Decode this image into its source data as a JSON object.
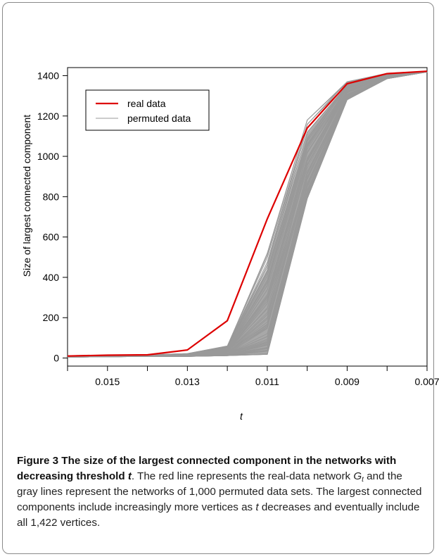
{
  "chart_data": {
    "type": "line",
    "title": "",
    "xlabel": "t",
    "ylabel": "Size of largest connected component",
    "x": [
      0.016,
      0.015,
      0.014,
      0.013,
      0.012,
      0.011,
      0.01,
      0.009,
      0.008,
      0.007
    ],
    "x_ticks": [
      0.015,
      0.013,
      0.011,
      0.009,
      0.007
    ],
    "x_tick_labels": [
      "0.015",
      "0.013",
      "0.011",
      "0.009",
      "0.007"
    ],
    "xlim": [
      0.016,
      0.007
    ],
    "x_reversed": true,
    "y_ticks": [
      0,
      200,
      400,
      600,
      800,
      1000,
      1200,
      1400
    ],
    "y_tick_labels": [
      "0",
      "200",
      "400",
      "600",
      "800",
      "1000",
      "1200",
      "1400"
    ],
    "ylim": [
      -40,
      1440
    ],
    "legend": {
      "position": "top-left",
      "entries": [
        "real data",
        "permuted data"
      ]
    },
    "series": [
      {
        "name": "real data",
        "color": "#dd0000",
        "values": [
          10,
          14,
          16,
          40,
          185,
          690,
          1140,
          1360,
          1410,
          1422
        ]
      }
    ],
    "permuted_bands": {
      "name": "permuted data",
      "color": "#999999",
      "count": 1000,
      "lower": [
        4,
        6,
        8,
        8,
        12,
        18,
        790,
        1280,
        1385,
        1418
      ],
      "upper": [
        12,
        14,
        16,
        22,
        60,
        520,
        1180,
        1370,
        1412,
        1422
      ]
    }
  },
  "caption": {
    "label": "Figure 3",
    "head": " The size of the largest connected component in the networks with decreasing threshold ",
    "head_var": "t",
    "text1": ". The red line represents the real-data network ",
    "gt_base": "G",
    "gt_sub": "t",
    "text2": " and the gray lines represent the networks of 1,000 permuted data sets. The largest connected components include increasingly more vertices as ",
    "t_var": "t",
    "text3": " decreases and eventually include all 1,422 vertices."
  }
}
